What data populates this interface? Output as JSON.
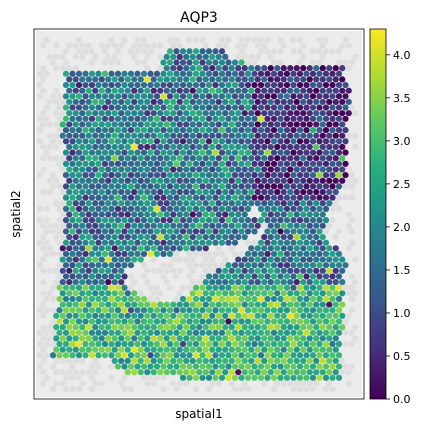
{
  "chart_data": {
    "type": "heatmap",
    "title": "AQP3",
    "xlabel": "spatial1",
    "ylabel": "spatial2",
    "colorbar": {
      "colormap": "viridis",
      "range": [
        0.0,
        4.3
      ],
      "ticks": [
        "0.0",
        "0.5",
        "1.0",
        "1.5",
        "2.0",
        "2.5",
        "3.0",
        "3.5",
        "4.0"
      ],
      "tick_values": [
        0.0,
        0.5,
        1.0,
        1.5,
        2.0,
        2.5,
        3.0,
        3.5,
        4.0
      ]
    },
    "spot_grid": "hexagonal",
    "background_color": "#ebebeb",
    "regions": [
      {
        "name": "upper tissue",
        "typical_value_range": [
          1.0,
          2.5
        ]
      },
      {
        "name": "upper-right corner",
        "typical_value_range": [
          0.0,
          1.0
        ]
      },
      {
        "name": "lower band",
        "typical_value_range": [
          2.5,
          4.3
        ]
      }
    ]
  }
}
